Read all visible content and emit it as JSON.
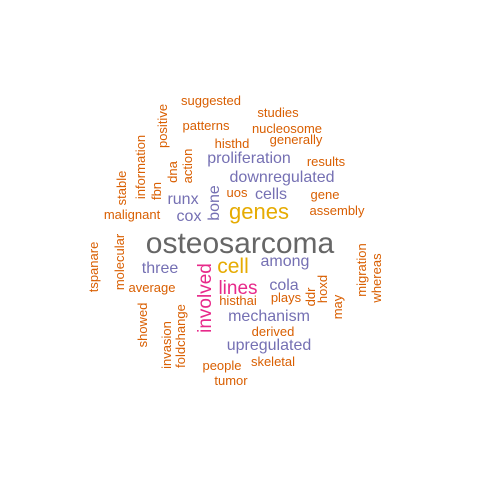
{
  "wordcloud": {
    "palette": {
      "orange": "#D95F02",
      "purple": "#7570B3",
      "magenta": "#E7298A",
      "gold": "#E6AB02",
      "gray": "#666666"
    },
    "words": [
      {
        "text": "osteosarcoma",
        "color": "#666666"
      },
      {
        "text": "genes",
        "color": "#E6AB02"
      },
      {
        "text": "cell",
        "color": "#E6AB02"
      },
      {
        "text": "involved",
        "color": "#E7298A"
      },
      {
        "text": "lines",
        "color": "#E7298A"
      },
      {
        "text": "proliferation",
        "color": "#7570B3"
      },
      {
        "text": "downregulated",
        "color": "#7570B3"
      },
      {
        "text": "cells",
        "color": "#7570B3"
      },
      {
        "text": "bone",
        "color": "#7570B3"
      },
      {
        "text": "runx",
        "color": "#7570B3"
      },
      {
        "text": "cox",
        "color": "#7570B3"
      },
      {
        "text": "three",
        "color": "#7570B3"
      },
      {
        "text": "among",
        "color": "#7570B3"
      },
      {
        "text": "cola",
        "color": "#7570B3"
      },
      {
        "text": "mechanism",
        "color": "#7570B3"
      },
      {
        "text": "upregulated",
        "color": "#7570B3"
      },
      {
        "text": "suggested",
        "color": "#D95F02"
      },
      {
        "text": "studies",
        "color": "#D95F02"
      },
      {
        "text": "positive",
        "color": "#D95F02"
      },
      {
        "text": "patterns",
        "color": "#D95F02"
      },
      {
        "text": "nucleosome",
        "color": "#D95F02"
      },
      {
        "text": "generally",
        "color": "#D95F02"
      },
      {
        "text": "histhd",
        "color": "#D95F02"
      },
      {
        "text": "information",
        "color": "#D95F02"
      },
      {
        "text": "action",
        "color": "#D95F02"
      },
      {
        "text": "dna",
        "color": "#D95F02"
      },
      {
        "text": "results",
        "color": "#D95F02"
      },
      {
        "text": "stable",
        "color": "#D95F02"
      },
      {
        "text": "fbn",
        "color": "#D95F02"
      },
      {
        "text": "uos",
        "color": "#D95F02"
      },
      {
        "text": "gene",
        "color": "#D95F02"
      },
      {
        "text": "malignant",
        "color": "#D95F02"
      },
      {
        "text": "assembly",
        "color": "#D95F02"
      },
      {
        "text": "tspanare",
        "color": "#D95F02"
      },
      {
        "text": "molecular",
        "color": "#D95F02"
      },
      {
        "text": "migration",
        "color": "#D95F02"
      },
      {
        "text": "whereas",
        "color": "#D95F02"
      },
      {
        "text": "average",
        "color": "#D95F02"
      },
      {
        "text": "hoxd",
        "color": "#D95F02"
      },
      {
        "text": "histhai",
        "color": "#D95F02"
      },
      {
        "text": "plays",
        "color": "#D95F02"
      },
      {
        "text": "ddr",
        "color": "#D95F02"
      },
      {
        "text": "may",
        "color": "#D95F02"
      },
      {
        "text": "showed",
        "color": "#D95F02"
      },
      {
        "text": "invasion",
        "color": "#D95F02"
      },
      {
        "text": "foldchange",
        "color": "#D95F02"
      },
      {
        "text": "derived",
        "color": "#D95F02"
      },
      {
        "text": "skeletal",
        "color": "#D95F02"
      },
      {
        "text": "people",
        "color": "#D95F02"
      },
      {
        "text": "tumor",
        "color": "#D95F02"
      }
    ]
  }
}
